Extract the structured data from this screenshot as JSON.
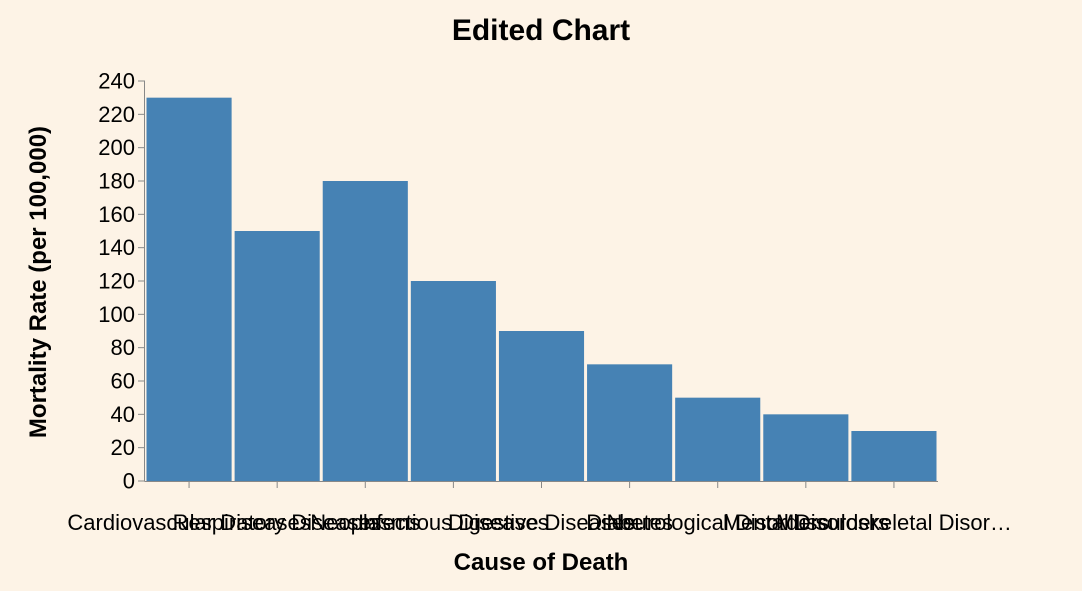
{
  "colors": {
    "background": "#fdf3e6",
    "bar": "#4682b4",
    "axis": "#888888"
  },
  "chart_data": {
    "type": "bar",
    "title": "Edited Chart",
    "xlabel": "Cause of Death",
    "ylabel": "Mortality Rate (per 100,000)",
    "ylim": [
      0,
      240
    ],
    "yticks": [
      0,
      20,
      40,
      60,
      80,
      100,
      120,
      140,
      160,
      180,
      200,
      220,
      240
    ],
    "grid": false,
    "categories": [
      "Cardiovascular Diseases",
      "Respiratory Diseases",
      "Neoplasms",
      "Infectious Diseases",
      "Digestive Diseases",
      "Diabetes",
      "Neurological Disorders",
      "Mental Disorders",
      "Musculoskeletal Disor…"
    ],
    "values": [
      230,
      150,
      180,
      120,
      90,
      70,
      50,
      40,
      30
    ]
  }
}
